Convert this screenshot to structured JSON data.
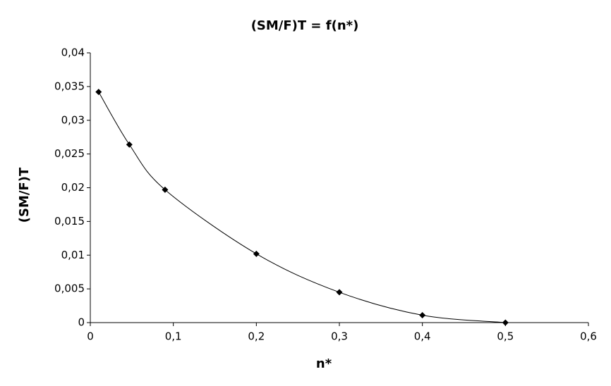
{
  "chart_data": {
    "type": "scatter",
    "title": "(SM/F)T = f(n*)",
    "x_label": "n*",
    "y_label": "(SM/F)T",
    "x": [
      0.01,
      0.047,
      0.09,
      0.2,
      0.3,
      0.4,
      0.5
    ],
    "values": [
      0.0342,
      0.0264,
      0.0197,
      0.0102,
      0.0045,
      0.0011,
      0.0
    ],
    "color": "#000000",
    "smooth": true,
    "marker": "diamond",
    "xlim": [
      0,
      0.6
    ],
    "xticks": [
      0,
      {
        "value": 0.1,
        "label": "0,1"
      },
      {
        "value": 0.2,
        "label": "0,2"
      },
      {
        "value": 0.3,
        "label": "0,3"
      },
      {
        "value": 0.4,
        "label": "0,4"
      },
      {
        "value": 0.5,
        "label": "0,5"
      },
      {
        "value": 0.6,
        "label": "0,6"
      }
    ],
    "ylim": [
      0,
      0.04
    ],
    "yticks": [
      0,
      {
        "value": 0.005,
        "label": "0,005"
      },
      {
        "value": 0.01,
        "label": "0,01"
      },
      {
        "value": 0.015,
        "label": "0,015"
      },
      {
        "value": 0.02,
        "label": "0,02"
      },
      {
        "value": 0.025,
        "label": "0,025"
      },
      {
        "value": 0.03,
        "label": "0,03"
      },
      {
        "value": 0.035,
        "label": "0,035"
      },
      {
        "value": 0.04,
        "label": "0,04"
      }
    ],
    "grid": false
  }
}
